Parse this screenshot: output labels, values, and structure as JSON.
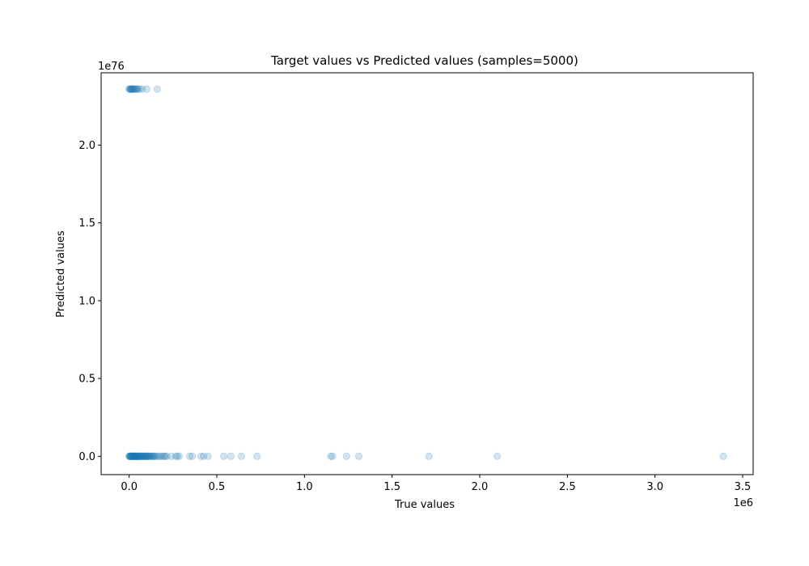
{
  "chart_data": {
    "type": "scatter",
    "title": "Target values vs Predicted values (samples=5000)",
    "xlabel": "True values",
    "ylabel": "Predicted values",
    "x_offset_label": "1e6",
    "y_offset_label": "1e76",
    "xlim": [
      -160000,
      3560000
    ],
    "ylim": [
      -1.18e+75,
      2.465e+76
    ],
    "xticks": [
      0,
      500000,
      1000000,
      1500000,
      2000000,
      2500000,
      3000000,
      3500000
    ],
    "xtick_labels": [
      "0.0",
      "0.5",
      "1.0",
      "1.5",
      "2.0",
      "2.5",
      "3.0",
      "3.5"
    ],
    "yticks": [
      0,
      5e+75,
      1e+76,
      1.5e+76,
      2e+76
    ],
    "ytick_labels": [
      "0.0",
      "0.5",
      "1.0",
      "1.5",
      "2.0"
    ],
    "grid": false,
    "marker_color": "#1f77b4",
    "marker_alpha": 0.2,
    "series": [
      {
        "x": [
          0,
          2000,
          4000,
          6000,
          8000,
          10000,
          12000,
          14000,
          16000,
          18000,
          20000,
          22000,
          24000,
          26000,
          28000,
          30000,
          32000,
          34000,
          36000,
          38000,
          40000,
          42000,
          44000,
          46000,
          48000,
          50000,
          52000,
          55000,
          58000,
          61000,
          64000,
          67000,
          70000,
          73000,
          76000,
          79000,
          82000,
          85000,
          88000,
          91000,
          94000,
          97000,
          100000,
          104000,
          108000,
          112000,
          116000,
          120000,
          125000,
          130000,
          135000,
          140000,
          145000,
          150000,
          160000,
          170000,
          180000,
          190000,
          200000,
          205000,
          215000,
          240000,
          265000,
          275000,
          285000,
          345000,
          360000,
          410000,
          425000,
          450000,
          540000,
          580000,
          640000,
          730000,
          1150000,
          1160000,
          1240000,
          1310000,
          1710000,
          2100000,
          3390000,
          0,
          3000,
          6000,
          9000,
          12000,
          15000,
          18000,
          21000,
          25000,
          30000,
          35000,
          40000,
          45000,
          50000,
          60000,
          75000,
          100000,
          160000
        ],
        "y": [
          0,
          0,
          0,
          0,
          0,
          0,
          0,
          0,
          0,
          0,
          0,
          0,
          0,
          0,
          0,
          0,
          0,
          0,
          0,
          0,
          0,
          0,
          0,
          0,
          0,
          0,
          0,
          0,
          0,
          0,
          0,
          0,
          0,
          0,
          0,
          0,
          0,
          0,
          0,
          0,
          0,
          0,
          0,
          0,
          0,
          0,
          0,
          0,
          0,
          0,
          0,
          0,
          0,
          0,
          0,
          0,
          0,
          0,
          0,
          0,
          0,
          0,
          0,
          0,
          0,
          0,
          0,
          0,
          0,
          0,
          0,
          0,
          0,
          0,
          0,
          0,
          0,
          0,
          0,
          0,
          0,
          2.36e+76,
          2.36e+76,
          2.36e+76,
          2.36e+76,
          2.36e+76,
          2.36e+76,
          2.36e+76,
          2.36e+76,
          2.36e+76,
          2.36e+76,
          2.36e+76,
          2.36e+76,
          2.36e+76,
          2.36e+76,
          2.36e+76,
          2.36e+76,
          2.36e+76,
          2.36e+76
        ]
      }
    ]
  }
}
